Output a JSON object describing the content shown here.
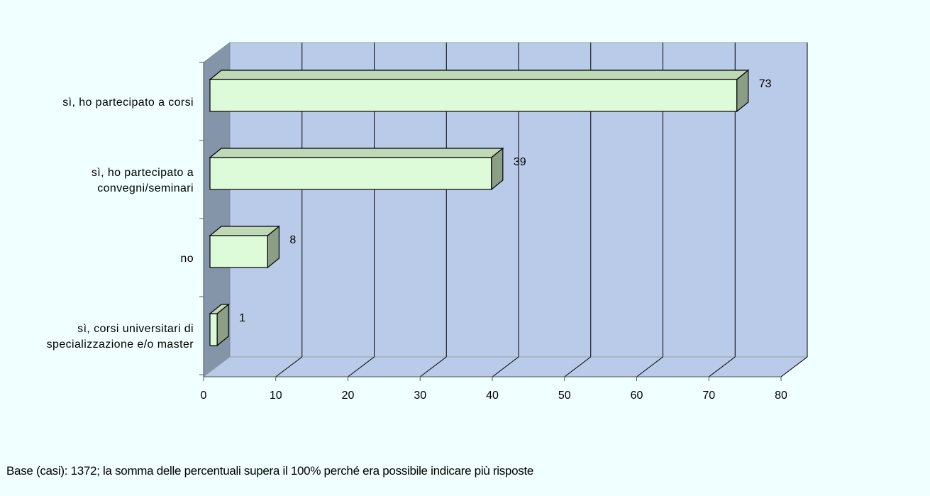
{
  "chart_data": {
    "type": "bar",
    "orientation": "horizontal",
    "style": "3d",
    "categories": [
      "sì, ho partecipato a corsi",
      "sì, ho partecipato a convegni/seminari",
      "no",
      "sì, corsi universitari di specializzazione e/o master"
    ],
    "category_lines": [
      [
        "sì, ho partecipato a corsi"
      ],
      [
        "sì, ho partecipato a",
        "convegni/seminari"
      ],
      [
        "no"
      ],
      [
        "sì, corsi universitari di",
        "specializzazione e/o master"
      ]
    ],
    "values": [
      73,
      39,
      8,
      1
    ],
    "data_labels": [
      "73",
      "39",
      "8",
      "1"
    ],
    "xlim": [
      0,
      80
    ],
    "x_ticks": [
      0,
      10,
      20,
      30,
      40,
      50,
      60,
      70,
      80
    ],
    "x_tick_labels": [
      "0",
      "10",
      "20",
      "30",
      "40",
      "50",
      "60",
      "70",
      "80"
    ],
    "grid": true,
    "colors": {
      "bar_face": "#ddfad9",
      "bar_top": "#bfd9b6",
      "bar_side": "#8a9f86",
      "plot_back": "#b9cbe9",
      "plot_left_wall": "#8595a9",
      "page_background": "#f0ffff"
    }
  },
  "footnote": "Base (casi): 1372; la somma delle percentuali supera il 100% perché era possibile indicare più risposte"
}
